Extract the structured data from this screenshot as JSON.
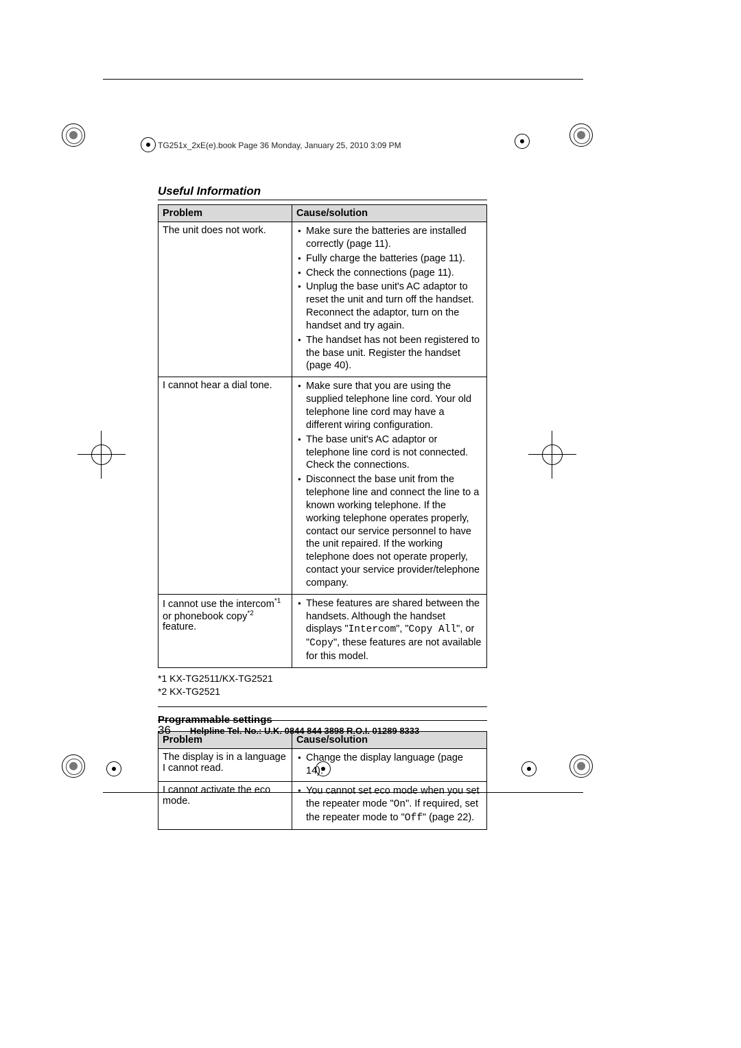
{
  "book_header": "TG251x_2xE(e).book  Page 36  Monday, January 25, 2010  3:09 PM",
  "section_title": "Useful Information",
  "table1": {
    "headers": {
      "problem": "Problem",
      "solution": "Cause/solution"
    },
    "rows": [
      {
        "problem": "The unit does not work.",
        "solutions": [
          "Make sure the batteries are installed correctly (page 11).",
          "Fully charge the batteries (page 11).",
          "Check the connections (page 11).",
          "Unplug the base unit's AC adaptor to reset the unit and turn off the handset. Reconnect the adaptor, turn on the handset and try again.",
          "The handset has not been registered to the base unit. Register the handset (page 40)."
        ]
      },
      {
        "problem": "I cannot hear a dial tone.",
        "solutions": [
          "Make sure that you are using the supplied telephone line cord. Your old telephone line cord may have a different wiring configuration.",
          "The base unit's AC adaptor or telephone line cord is not connected. Check the connections.",
          "Disconnect the base unit from the telephone line and connect the line to a known working telephone. If the working telephone operates properly, contact our service personnel to have the unit repaired. If the working telephone does not operate properly, contact your service provider/telephone company."
        ]
      },
      {
        "problem_html": "I cannot use the intercom<sup>*1</sup> or phonebook copy<sup>*2</sup> feature.",
        "solutions_html": [
          "These features are shared between the handsets. Although the handset displays \"<span class='mono'>Intercom</span>\", \"<span class='mono'>Copy All</span>\", or \"<span class='mono'>Copy</span>\", these features are not available for this model."
        ]
      }
    ]
  },
  "footnote1": "*1 KX-TG2511/KX-TG2521",
  "footnote2": "*2 KX-TG2521",
  "subsection_title": "Programmable settings",
  "table2": {
    "headers": {
      "problem": "Problem",
      "solution": "Cause/solution"
    },
    "rows": [
      {
        "problem": "The display is in a language I cannot read.",
        "solutions": [
          "Change the display language (page 14)."
        ]
      },
      {
        "problem": "I cannot activate the eco mode.",
        "solutions_html": [
          "You cannot set eco mode when you set the repeater mode \"<span class='mono'>On</span>\". If required, set the repeater mode to \"<span class='mono'>Off</span>\" (page 22)."
        ]
      }
    ]
  },
  "page_number": "36",
  "helpline": "Helpline Tel. No.: U.K. 0844 844 3898 R.O.I. 01289 8333",
  "colors": {
    "header_bg": "#d9d9d9",
    "border": "#000000",
    "text": "#000000"
  }
}
